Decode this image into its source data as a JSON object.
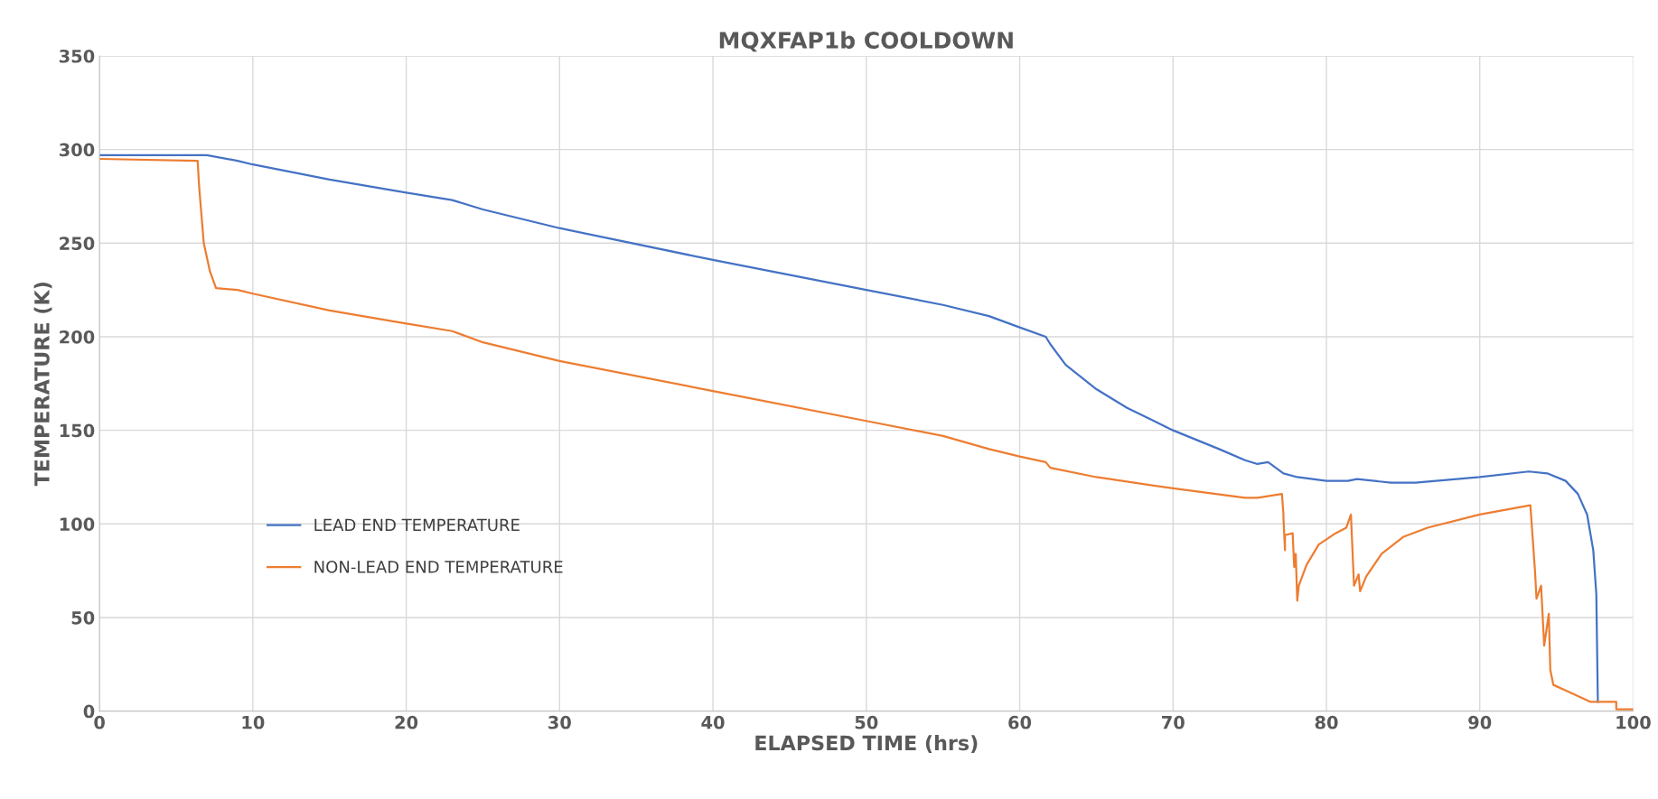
{
  "chart_data": {
    "type": "line",
    "title": "MQXFAP1b COOLDOWN",
    "xlabel": "ELAPSED TIME (hrs)",
    "ylabel": "TEMPERATURE (K)",
    "xlim": [
      0,
      100
    ],
    "xticks": [
      0,
      10,
      20,
      30,
      40,
      50,
      60,
      70,
      80,
      90,
      100
    ],
    "ylim": [
      0,
      350
    ],
    "yticks": [
      0,
      50,
      100,
      150,
      200,
      250,
      300,
      350
    ],
    "grid": true,
    "legend": "left",
    "marker": "none",
    "line_style": "solid",
    "series": [
      {
        "name": "LEAD END TEMPERATURE",
        "color": "#4472c4",
        "x": [
          0,
          7,
          9,
          10,
          15,
          20,
          23,
          25,
          30,
          40,
          50,
          55,
          58,
          60,
          61.7,
          62,
          63,
          65,
          67,
          70,
          73,
          74.7,
          75.5,
          76.2,
          77.2,
          78.1,
          80,
          81.4,
          82,
          84.2,
          85.8,
          88.5,
          90,
          93.2,
          94.4,
          95.6,
          96.4,
          97,
          97.4,
          97.6,
          97.7
        ],
        "values": [
          297,
          297,
          294,
          292,
          284,
          277,
          273,
          268,
          258,
          241,
          225,
          217,
          211,
          205,
          200,
          196,
          185,
          172,
          162,
          150,
          140,
          134,
          132,
          133,
          127,
          125,
          123,
          123,
          124,
          122,
          122,
          124,
          125,
          128,
          127,
          123,
          116,
          105,
          86,
          62.5,
          5
        ]
      },
      {
        "name": "NON-LEAD END TEMPERATURE",
        "color": "#ed7d31",
        "x": [
          0,
          6.4,
          6.5,
          6.8,
          7.2,
          7.6,
          9,
          10,
          15,
          20,
          23,
          25,
          30,
          40,
          50,
          55,
          58,
          60,
          61.7,
          62,
          65,
          70,
          74.7,
          75.5,
          77.1,
          77.2,
          77.2,
          77.3,
          77.3,
          77.8,
          77.9,
          78,
          78.1,
          78.2,
          78.7,
          79.5,
          80.6,
          81.3,
          81.6,
          81.8,
          82.1,
          82.2,
          82.6,
          83.6,
          85,
          86.6,
          90,
          93.3,
          93.6,
          93.7,
          94,
          94.2,
          94.5,
          94.6,
          94.8,
          95.6,
          97.2,
          98.9,
          98.9,
          100
        ],
        "values": [
          295,
          294,
          280,
          250,
          235,
          226,
          225,
          223,
          214,
          207,
          203,
          197,
          187,
          171,
          155,
          147,
          140,
          136,
          133,
          130,
          125,
          119,
          114,
          114,
          116,
          105,
          103,
          86,
          94,
          95,
          77,
          84,
          59,
          67,
          78,
          89,
          95,
          98,
          105,
          67,
          73,
          64,
          72,
          84,
          93,
          98,
          105,
          110,
          75,
          60,
          67,
          35,
          52,
          22,
          14,
          11,
          5,
          5,
          1,
          1
        ]
      }
    ]
  }
}
